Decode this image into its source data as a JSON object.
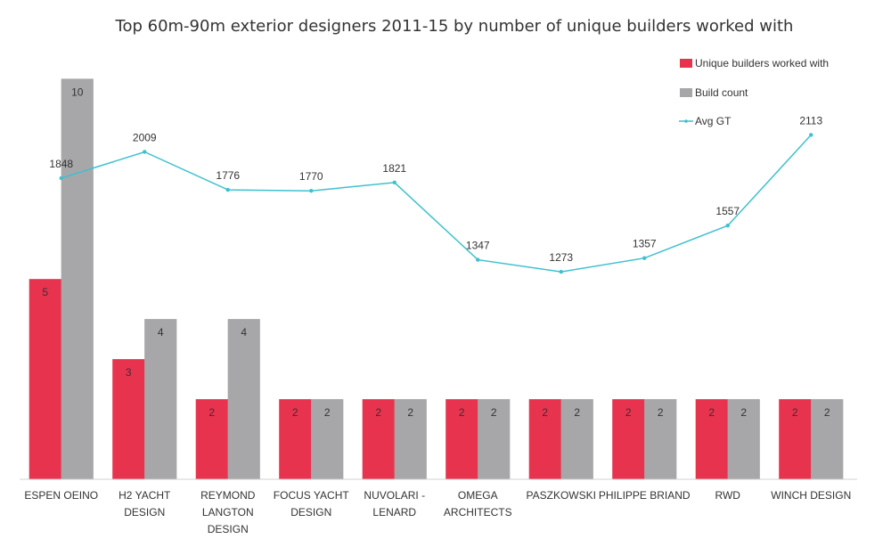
{
  "chart_data": {
    "type": "bar",
    "title": "Top 60m-90m exterior designers 2011-15 by number of unique builders worked with",
    "categories": [
      [
        "ESPEN OEINO"
      ],
      [
        "H2 YACHT",
        "DESIGN"
      ],
      [
        "REYMOND",
        "LANGTON",
        "DESIGN"
      ],
      [
        "FOCUS YACHT",
        "DESIGN"
      ],
      [
        "NUVOLARI -",
        "LENARD"
      ],
      [
        "OMEGA",
        "ARCHITECTS"
      ],
      [
        "PASZKOWSKI"
      ],
      [
        "PHILIPPE BRIAND"
      ],
      [
        "RWD"
      ],
      [
        "WINCH DESIGN"
      ]
    ],
    "series": [
      {
        "name": "Unique builders worked with",
        "kind": "bar",
        "color": "#e8334f",
        "values": [
          5,
          3,
          2,
          2,
          2,
          2,
          2,
          2,
          2,
          2
        ]
      },
      {
        "name": "Build count",
        "kind": "bar",
        "color": "#a7a7a9",
        "values": [
          10,
          4,
          4,
          2,
          2,
          2,
          2,
          2,
          2,
          2
        ]
      },
      {
        "name": "Avg GT",
        "kind": "line",
        "color": "#3fc0cf",
        "secondary_axis": true,
        "values": [
          1848,
          2009,
          1776,
          1770,
          1821,
          1347,
          1273,
          1357,
          1557,
          2113
        ]
      }
    ],
    "ylim": [
      0,
      10.5
    ],
    "y2lim": [
      0,
      2580
    ],
    "grid": false,
    "legend_position": "top-right"
  }
}
